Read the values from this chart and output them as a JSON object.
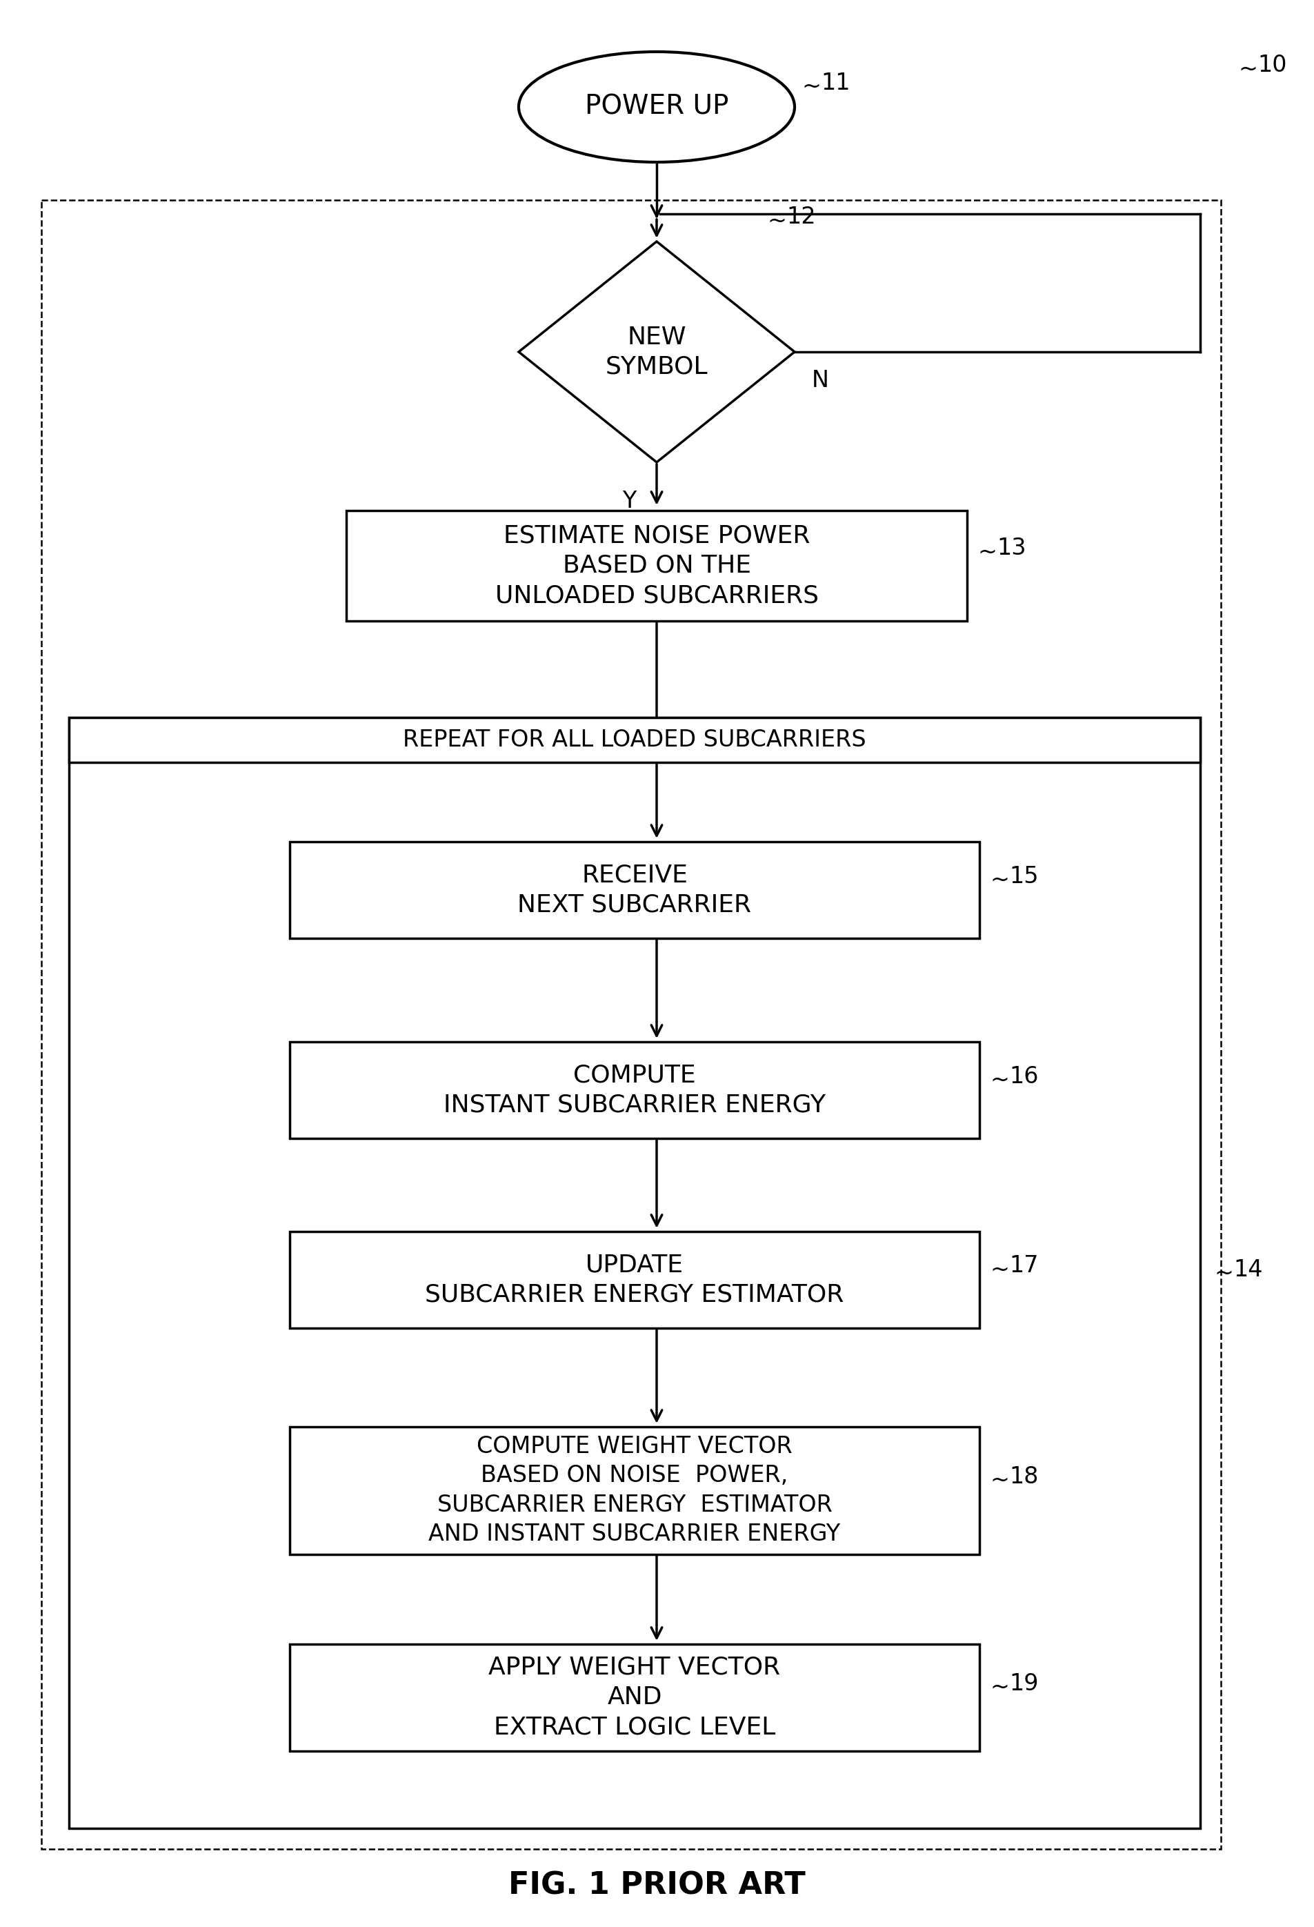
{
  "title": "FIG. 1 PRIOR ART",
  "bg_color": "#ffffff",
  "line_color": "#000000",
  "powerup_label": "POWER UP",
  "newsymbol_label": "NEW\nSYMBOL",
  "estimate_label": "ESTIMATE NOISE POWER\nBASED ON THE\nUNLOADED SUBCARRIERS",
  "repeat_label": "REPEAT FOR ALL LOADED SUBCARRIERS",
  "receive_label": "RECEIVE\nNEXT SUBCARRIER",
  "compute_energy_label": "COMPUTE\nINSTANT SUBCARRIER ENERGY",
  "update_label": "UPDATE\nSUBCARRIER ENERGY ESTIMATOR",
  "compute_weight_label": "COMPUTE WEIGHT VECTOR\nBASED ON NOISE  POWER,\nSUBCARRIER ENERGY  ESTIMATOR\nAND INSTANT SUBCARRIER ENERGY",
  "apply_label": "APPLY WEIGHT VECTOR\nAND\nEXTRACT LOGIC LEVEL",
  "ref10_label": "10",
  "ref11_label": "11",
  "ref12_label": "12",
  "ref13_label": "13",
  "ref14_label": "14",
  "ref15_label": "15",
  "ref16_label": "16",
  "ref17_label": "17",
  "ref18_label": "18",
  "ref19_label": "19",
  "Y_label": "Y",
  "N_label": "N"
}
